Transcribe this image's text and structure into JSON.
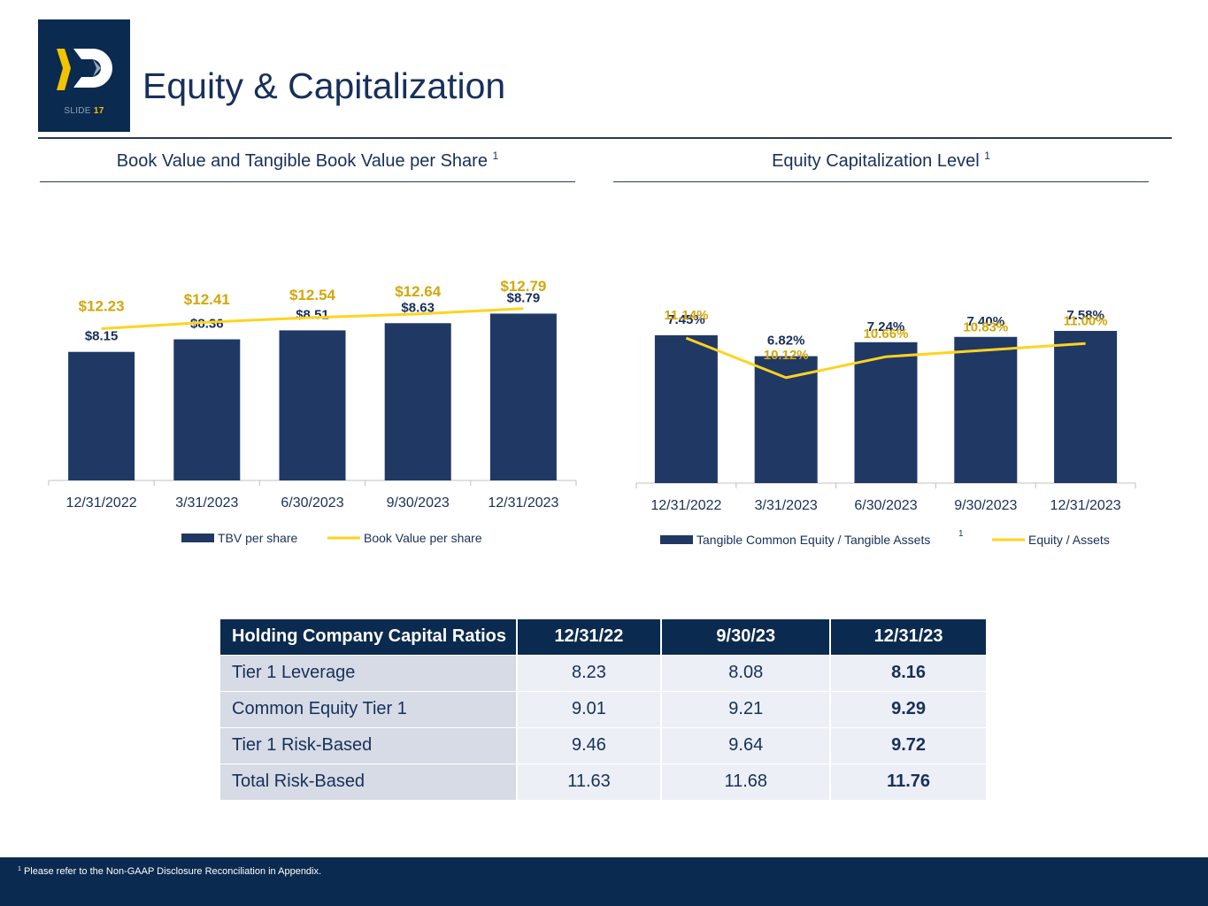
{
  "header": {
    "title": "Equity & Capitalization",
    "slide_label": "SLIDE",
    "slide_number": "17"
  },
  "colors": {
    "navy": "#0b2a50",
    "bar": "#203864",
    "gold_line": "#ffd320",
    "gold_text": "#d4a60b",
    "dark_text": "#17305a"
  },
  "left_panel": {
    "title": "Book Value and Tangible Book Value per Share",
    "footnote_mark": "1"
  },
  "right_panel": {
    "title": "Equity Capitalization Level",
    "footnote_mark": "1"
  },
  "chart_data": [
    {
      "type": "bar",
      "title": "Book Value and Tangible Book Value per Share",
      "categories": [
        "12/31/2022",
        "3/31/2023",
        "6/30/2023",
        "9/30/2023",
        "12/31/2023"
      ],
      "series": [
        {
          "name": "TBV per share",
          "kind": "bar",
          "values": [
            8.15,
            8.36,
            8.51,
            8.63,
            8.79
          ],
          "labels": [
            "$8.15",
            "$8.36",
            "$8.51",
            "$8.63",
            "$8.79"
          ]
        },
        {
          "name": "Book Value per share",
          "kind": "line",
          "values": [
            12.23,
            12.41,
            12.54,
            12.64,
            12.79
          ],
          "labels": [
            "$12.23",
            "$12.41",
            "$12.54",
            "$12.64",
            "$12.79"
          ]
        }
      ],
      "ylim_bar": [
        6.0,
        9.3
      ],
      "ylim_line": [
        8.0,
        13.5
      ],
      "legend": "bottom",
      "grid": false
    },
    {
      "type": "bar",
      "title": "Equity Capitalization Level",
      "categories": [
        "12/31/2022",
        "3/31/2023",
        "6/30/2023",
        "9/30/2023",
        "12/31/2023"
      ],
      "series": [
        {
          "name": "Tangible Common Equity / Tangible Assets",
          "name_mark": "1",
          "kind": "bar",
          "values": [
            7.45,
            6.82,
            7.24,
            7.4,
            7.58
          ],
          "labels": [
            "7.45%",
            "6.82%",
            "7.24%",
            "7.40%",
            "7.58%"
          ]
        },
        {
          "name": "Equity / Assets",
          "kind": "line",
          "values": [
            11.14,
            10.12,
            10.66,
            10.83,
            11.0
          ],
          "labels": [
            "11.14%",
            "10.12%",
            "10.66%",
            "10.83%",
            "11.00%"
          ]
        }
      ],
      "ylim_bar": [
        3.0,
        7.9
      ],
      "ylim_line": [
        7.4,
        11.6
      ],
      "legend": "bottom",
      "grid": false
    }
  ],
  "table": {
    "headers": [
      "Holding Company Capital Ratios",
      "12/31/22",
      "9/30/23",
      "12/31/23"
    ],
    "rows": [
      [
        "Tier 1 Leverage",
        "8.23",
        "8.08",
        "8.16"
      ],
      [
        "Common Equity Tier 1",
        "9.01",
        "9.21",
        "9.29"
      ],
      [
        "Tier 1 Risk-Based",
        "9.46",
        "9.64",
        "9.72"
      ],
      [
        "Total Risk-Based",
        "11.63",
        "11.68",
        "11.76"
      ]
    ]
  },
  "footer": {
    "mark": "1",
    "note": "Please refer to the Non-GAAP Disclosure Reconciliation in Appendix."
  }
}
